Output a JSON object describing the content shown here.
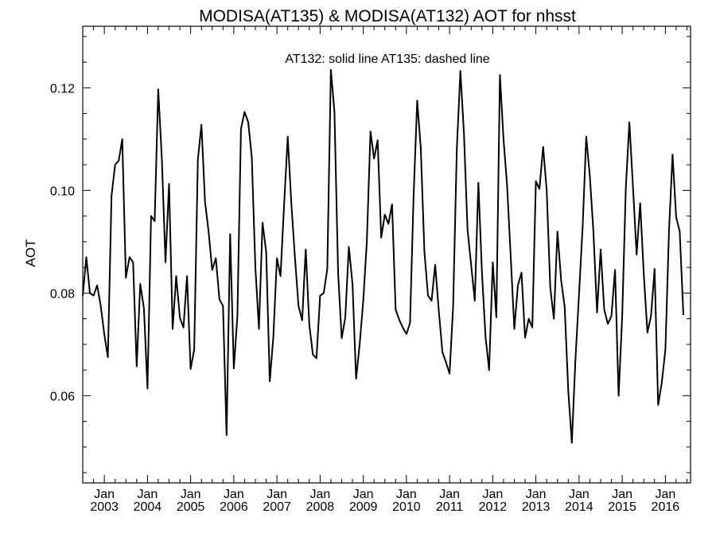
{
  "chart_data": {
    "type": "line",
    "title": "MODISA(AT135) & MODISA(AT132)  AOT for nhsst",
    "annotation": "AT132: solid line   AT135: dashed line",
    "xlabel": "",
    "ylabel": "AOT",
    "ylim": [
      0.043,
      0.132
    ],
    "xlim": [
      "2002-07-01",
      "2016-08-01"
    ],
    "yticks": [
      0.06,
      0.08,
      0.1,
      0.12
    ],
    "ytick_labels": [
      "0.06",
      "0.08",
      "0.10",
      "0.12"
    ],
    "xticks": [
      {
        "month": "Jan",
        "year": "2003",
        "date": "2003-01-01"
      },
      {
        "month": "Jan",
        "year": "2004",
        "date": "2004-01-01"
      },
      {
        "month": "Jan",
        "year": "2005",
        "date": "2005-01-01"
      },
      {
        "month": "Jan",
        "year": "2006",
        "date": "2006-01-01"
      },
      {
        "month": "Jan",
        "year": "2007",
        "date": "2007-01-01"
      },
      {
        "month": "Jan",
        "year": "2008",
        "date": "2008-01-01"
      },
      {
        "month": "Jan",
        "year": "2009",
        "date": "2009-01-01"
      },
      {
        "month": "Jan",
        "year": "2010",
        "date": "2010-01-01"
      },
      {
        "month": "Jan",
        "year": "2011",
        "date": "2011-01-01"
      },
      {
        "month": "Jan",
        "year": "2012",
        "date": "2012-01-01"
      },
      {
        "month": "Jan",
        "year": "2013",
        "date": "2013-01-01"
      },
      {
        "month": "Jan",
        "year": "2014",
        "date": "2014-01-01"
      },
      {
        "month": "Jan",
        "year": "2015",
        "date": "2015-01-01"
      },
      {
        "month": "Jan",
        "year": "2016",
        "date": "2016-01-01"
      }
    ],
    "grid": false,
    "series": [
      {
        "style": "solid",
        "color": "#000000",
        "points": [
          [
            "2002-07",
            0.0795
          ],
          [
            "2002-08",
            0.087
          ],
          [
            "2002-09",
            0.08
          ],
          [
            "2002-10",
            0.0795
          ],
          [
            "2002-11",
            0.0815
          ],
          [
            "2002-12",
            0.0775
          ],
          [
            "2003-01",
            0.072
          ],
          [
            "2003-02",
            0.0675
          ],
          [
            "2003-03",
            0.099
          ],
          [
            "2003-04",
            0.105
          ],
          [
            "2003-05",
            0.1058
          ],
          [
            "2003-06",
            0.11
          ],
          [
            "2003-07",
            0.083
          ],
          [
            "2003-08",
            0.087
          ],
          [
            "2003-09",
            0.086
          ],
          [
            "2003-10",
            0.0657
          ],
          [
            "2003-11",
            0.0818
          ],
          [
            "2003-12",
            0.077
          ],
          [
            "2004-01",
            0.0614
          ],
          [
            "2004-02",
            0.095
          ],
          [
            "2004-03",
            0.094
          ],
          [
            "2004-04",
            0.1197
          ],
          [
            "2004-05",
            0.106
          ],
          [
            "2004-06",
            0.086
          ],
          [
            "2004-07",
            0.1013
          ],
          [
            "2004-08",
            0.073
          ],
          [
            "2004-09",
            0.0833
          ],
          [
            "2004-10",
            0.0752
          ],
          [
            "2004-11",
            0.0733
          ],
          [
            "2004-12",
            0.0833
          ],
          [
            "2005-01",
            0.0652
          ],
          [
            "2005-02",
            0.069
          ],
          [
            "2005-03",
            0.106
          ],
          [
            "2005-04",
            0.1128
          ],
          [
            "2005-05",
            0.0978
          ],
          [
            "2005-06",
            0.092
          ],
          [
            "2005-07",
            0.0845
          ],
          [
            "2005-08",
            0.0868
          ],
          [
            "2005-09",
            0.0788
          ],
          [
            "2005-10",
            0.0775
          ],
          [
            "2005-11",
            0.0523
          ],
          [
            "2005-12",
            0.0915
          ],
          [
            "2006-01",
            0.0653
          ],
          [
            "2006-02",
            0.0755
          ],
          [
            "2006-03",
            0.112
          ],
          [
            "2006-04",
            0.1153
          ],
          [
            "2006-05",
            0.1133
          ],
          [
            "2006-06",
            0.1065
          ],
          [
            "2006-07",
            0.085
          ],
          [
            "2006-08",
            0.073
          ],
          [
            "2006-09",
            0.0937
          ],
          [
            "2006-10",
            0.088
          ],
          [
            "2006-11",
            0.0628
          ],
          [
            "2006-12",
            0.0715
          ],
          [
            "2007-01",
            0.0868
          ],
          [
            "2007-02",
            0.0833
          ],
          [
            "2007-03",
            0.0975
          ],
          [
            "2007-04",
            0.1105
          ],
          [
            "2007-05",
            0.0975
          ],
          [
            "2007-06",
            0.087
          ],
          [
            "2007-07",
            0.0775
          ],
          [
            "2007-08",
            0.0747
          ],
          [
            "2007-09",
            0.0885
          ],
          [
            "2007-10",
            0.0738
          ],
          [
            "2007-11",
            0.068
          ],
          [
            "2007-12",
            0.0673
          ],
          [
            "2008-01",
            0.0795
          ],
          [
            "2008-02",
            0.08
          ],
          [
            "2008-03",
            0.0847
          ],
          [
            "2008-04",
            0.1235
          ],
          [
            "2008-05",
            0.1153
          ],
          [
            "2008-06",
            0.084
          ],
          [
            "2008-07",
            0.0712
          ],
          [
            "2008-08",
            0.0752
          ],
          [
            "2008-09",
            0.089
          ],
          [
            "2008-10",
            0.0818
          ],
          [
            "2008-11",
            0.0633
          ],
          [
            "2008-12",
            0.07
          ],
          [
            "2009-01",
            0.0785
          ],
          [
            "2009-02",
            0.09
          ],
          [
            "2009-03",
            0.1115
          ],
          [
            "2009-04",
            0.1062
          ],
          [
            "2009-05",
            0.1098
          ],
          [
            "2009-06",
            0.0908
          ],
          [
            "2009-07",
            0.0953
          ],
          [
            "2009-08",
            0.0935
          ],
          [
            "2009-09",
            0.0973
          ],
          [
            "2009-10",
            0.0768
          ],
          [
            "2009-11",
            0.0748
          ],
          [
            "2009-12",
            0.0733
          ],
          [
            "2010-01",
            0.072
          ],
          [
            "2010-02",
            0.0742
          ],
          [
            "2010-03",
            0.099
          ],
          [
            "2010-04",
            0.1175
          ],
          [
            "2010-05",
            0.1083
          ],
          [
            "2010-06",
            0.088
          ],
          [
            "2010-07",
            0.0795
          ],
          [
            "2010-08",
            0.0785
          ],
          [
            "2010-09",
            0.0855
          ],
          [
            "2010-10",
            0.0765
          ],
          [
            "2010-11",
            0.0685
          ],
          [
            "2010-12",
            0.0665
          ],
          [
            "2011-01",
            0.0643
          ],
          [
            "2011-02",
            0.0775
          ],
          [
            "2011-03",
            0.108
          ],
          [
            "2011-04",
            0.1233
          ],
          [
            "2011-05",
            0.111
          ],
          [
            "2011-06",
            0.0923
          ],
          [
            "2011-07",
            0.0855
          ],
          [
            "2011-08",
            0.0785
          ],
          [
            "2011-09",
            0.1015
          ],
          [
            "2011-10",
            0.084
          ],
          [
            "2011-11",
            0.0715
          ],
          [
            "2011-12",
            0.065
          ],
          [
            "2012-01",
            0.086
          ],
          [
            "2012-02",
            0.0753
          ],
          [
            "2012-03",
            0.1225
          ],
          [
            "2012-04",
            0.11
          ],
          [
            "2012-05",
            0.101
          ],
          [
            "2012-06",
            0.087
          ],
          [
            "2012-07",
            0.073
          ],
          [
            "2012-08",
            0.0815
          ],
          [
            "2012-09",
            0.084
          ],
          [
            "2012-10",
            0.0713
          ],
          [
            "2012-11",
            0.075
          ],
          [
            "2012-12",
            0.0733
          ],
          [
            "2013-01",
            0.1018
          ],
          [
            "2013-02",
            0.1003
          ],
          [
            "2013-03",
            0.1085
          ],
          [
            "2013-04",
            0.1
          ],
          [
            "2013-05",
            0.081
          ],
          [
            "2013-06",
            0.075
          ],
          [
            "2013-07",
            0.092
          ],
          [
            "2013-08",
            0.0825
          ],
          [
            "2013-09",
            0.0773
          ],
          [
            "2013-10",
            0.061
          ],
          [
            "2013-11",
            0.0508
          ],
          [
            "2013-12",
            0.067
          ],
          [
            "2014-01",
            0.08
          ],
          [
            "2014-02",
            0.093
          ],
          [
            "2014-03",
            0.1105
          ],
          [
            "2014-04",
            0.1028
          ],
          [
            "2014-05",
            0.092
          ],
          [
            "2014-06",
            0.0762
          ],
          [
            "2014-07",
            0.0885
          ],
          [
            "2014-08",
            0.0768
          ],
          [
            "2014-09",
            0.074
          ],
          [
            "2014-10",
            0.0755
          ],
          [
            "2014-11",
            0.0845
          ],
          [
            "2014-12",
            0.06
          ],
          [
            "2015-01",
            0.0755
          ],
          [
            "2015-02",
            0.1003
          ],
          [
            "2015-03",
            0.1133
          ],
          [
            "2015-04",
            0.1005
          ],
          [
            "2015-05",
            0.0875
          ],
          [
            "2015-06",
            0.0975
          ],
          [
            "2015-07",
            0.0838
          ],
          [
            "2015-08",
            0.0723
          ],
          [
            "2015-09",
            0.0755
          ],
          [
            "2015-10",
            0.0847
          ],
          [
            "2015-11",
            0.0582
          ],
          [
            "2015-12",
            0.0625
          ],
          [
            "2016-01",
            0.069
          ],
          [
            "2016-02",
            0.092
          ],
          [
            "2016-03",
            0.107
          ],
          [
            "2016-04",
            0.0948
          ],
          [
            "2016-05",
            0.092
          ],
          [
            "2016-06",
            0.0757
          ]
        ]
      }
    ]
  }
}
